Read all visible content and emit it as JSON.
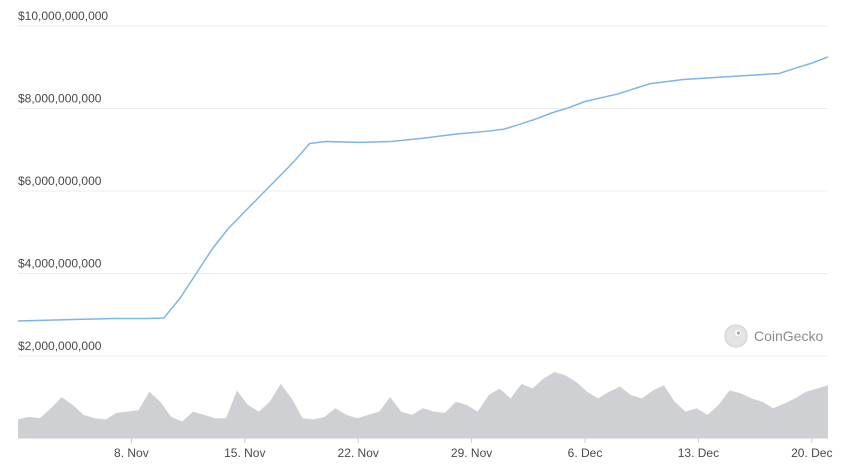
{
  "chart_data": {
    "type": "area",
    "title": "",
    "xlabel": "",
    "ylabel": "",
    "y_ticks": [
      "$2,000,000,000",
      "$4,000,000,000",
      "$6,000,000,000",
      "$8,000,000,000",
      "$10,000,000,000"
    ],
    "y_tick_values": [
      2000000000,
      4000000000,
      6000000000,
      8000000000,
      10000000000
    ],
    "x_ticks": [
      "8. Nov",
      "15. Nov",
      "22. Nov",
      "29. Nov",
      "6. Dec",
      "13. Dec",
      "20. Dec"
    ],
    "x_tick_dates": [
      "2021-11-08",
      "2021-11-15",
      "2021-11-22",
      "2021-11-29",
      "2021-12-06",
      "2021-12-13",
      "2021-12-20"
    ],
    "xlim": [
      "2021-11-01",
      "2021-12-21"
    ],
    "ylim": [
      2000000000,
      10000000000
    ],
    "grid": true,
    "line_color": "#7cb5ec",
    "volume_color": "#cfd0d4",
    "grid_color": "#ececec",
    "series": [
      {
        "type": "line",
        "points": [
          [
            "2021-11-01",
            2850000000
          ],
          [
            "2021-11-03",
            2870000000
          ],
          [
            "2021-11-05",
            2890000000
          ],
          [
            "2021-11-07",
            2910000000
          ],
          [
            "2021-11-09",
            2910000000
          ],
          [
            "2021-11-10",
            2920000000
          ],
          [
            "2021-11-11",
            3400000000
          ],
          [
            "2021-11-12",
            4000000000
          ],
          [
            "2021-11-13",
            4600000000
          ],
          [
            "2021-11-14",
            5100000000
          ],
          [
            "2021-11-15",
            5500000000
          ],
          [
            "2021-11-16",
            5900000000
          ],
          [
            "2021-11-17",
            6300000000
          ],
          [
            "2021-11-18",
            6700000000
          ],
          [
            "2021-11-19",
            7150000000
          ],
          [
            "2021-11-20",
            7200000000
          ],
          [
            "2021-11-22",
            7180000000
          ],
          [
            "2021-11-24",
            7200000000
          ],
          [
            "2021-11-26",
            7280000000
          ],
          [
            "2021-11-28",
            7380000000
          ],
          [
            "2021-11-30",
            7450000000
          ],
          [
            "2021-12-01",
            7500000000
          ],
          [
            "2021-12-02",
            7620000000
          ],
          [
            "2021-12-03",
            7750000000
          ],
          [
            "2021-12-04",
            7900000000
          ],
          [
            "2021-12-05",
            8020000000
          ],
          [
            "2021-12-06",
            8170000000
          ],
          [
            "2021-12-08",
            8350000000
          ],
          [
            "2021-12-10",
            8600000000
          ],
          [
            "2021-12-12",
            8700000000
          ],
          [
            "2021-12-14",
            8750000000
          ],
          [
            "2021-12-16",
            8800000000
          ],
          [
            "2021-12-18",
            8850000000
          ],
          [
            "2021-12-19",
            8980000000
          ],
          [
            "2021-12-20",
            9100000000
          ],
          [
            "2021-12-21",
            9250000000
          ]
        ]
      },
      {
        "type": "volume",
        "relative_values": [
          0.28,
          0.32,
          0.3,
          0.45,
          0.62,
          0.5,
          0.35,
          0.3,
          0.28,
          0.38,
          0.4,
          0.42,
          0.7,
          0.55,
          0.32,
          0.25,
          0.4,
          0.35,
          0.3,
          0.3,
          0.72,
          0.5,
          0.4,
          0.55,
          0.82,
          0.6,
          0.3,
          0.28,
          0.32,
          0.45,
          0.35,
          0.3,
          0.35,
          0.4,
          0.62,
          0.4,
          0.35,
          0.45,
          0.4,
          0.38,
          0.55,
          0.5,
          0.4,
          0.65,
          0.75,
          0.6,
          0.82,
          0.75,
          0.9,
          1.0,
          0.95,
          0.85,
          0.7,
          0.6,
          0.7,
          0.78,
          0.65,
          0.6,
          0.72,
          0.8,
          0.55,
          0.4,
          0.45,
          0.35,
          0.5,
          0.72,
          0.68,
          0.6,
          0.55,
          0.45,
          0.52,
          0.6,
          0.7,
          0.75,
          0.8
        ]
      }
    ],
    "watermark": "CoinGecko"
  }
}
